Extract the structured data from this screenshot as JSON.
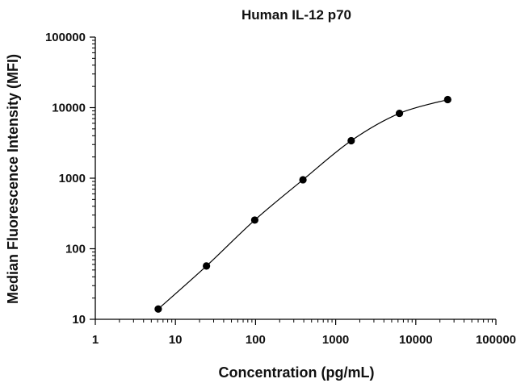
{
  "chart_data": {
    "type": "scatter",
    "title": "Human IL-12 p70",
    "xlabel": "Concentration (pg/mL)",
    "ylabel": "Median Fluorescence Intensity (MFI)",
    "x_scale": "log",
    "y_scale": "log",
    "xlim": [
      1,
      100000
    ],
    "ylim": [
      10,
      100000
    ],
    "x_ticks": [
      1,
      10,
      100,
      1000,
      10000,
      100000
    ],
    "x_tick_labels": [
      "1",
      "10",
      "100",
      "1000",
      "10000",
      "100000"
    ],
    "y_ticks": [
      10,
      100,
      1000,
      10000,
      100000
    ],
    "y_tick_labels": [
      "10",
      "100",
      "1000",
      "10000",
      "100000"
    ],
    "grid": false,
    "fit_curve": true,
    "marker_color": "#000000",
    "line_color": "#000000",
    "series": [
      {
        "x": [
          6.1,
          24.4,
          97.7,
          390.6,
          1562.5,
          6250,
          25000
        ],
        "y": [
          14,
          57,
          255,
          950,
          3400,
          8300,
          13000
        ]
      }
    ]
  }
}
